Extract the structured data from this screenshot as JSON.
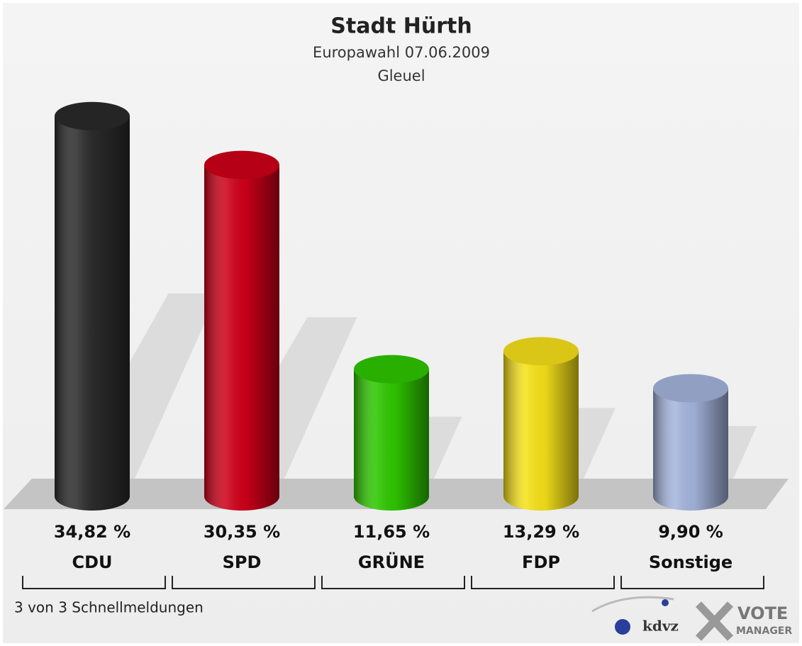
{
  "chart_data": {
    "type": "bar",
    "title": "Stadt Hürth",
    "subtitle": "Europawahl 07.06.2009",
    "subtitle2": "Gleuel",
    "categories": [
      "CDU",
      "SPD",
      "GRÜNE",
      "FDP",
      "Sonstige"
    ],
    "values": [
      34.82,
      30.35,
      11.65,
      13.29,
      9.9
    ],
    "value_labels": [
      "34,82 %",
      "30,35 %",
      "11,65 %",
      "13,29 %",
      "9,90 %"
    ],
    "colors": [
      "#2b2b2b",
      "#cf0019",
      "#2fc800",
      "#f7e21a",
      "#a5b5de"
    ],
    "footer": "3 von 3 Schnellmeldungen",
    "logo": {
      "kdvz": "kdvz",
      "vote": "VOTE",
      "manager": "MANAGER"
    }
  }
}
